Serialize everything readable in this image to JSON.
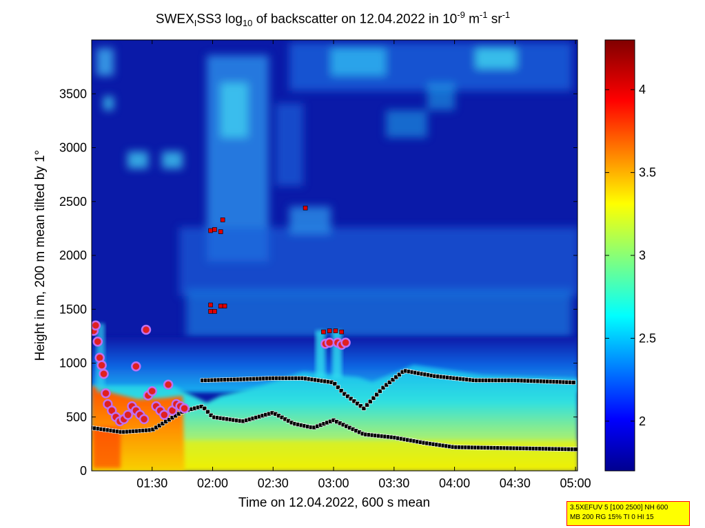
{
  "title": {
    "prefix": "SWEX",
    "sub1": "I",
    "middle": "SS3 log",
    "sub2": "10",
    "rest": " of backscatter on 12.04.2022 in 10",
    "sup1": "-9",
    "unit1": " m",
    "sup2": "-1",
    "unit2": " sr",
    "sup3": "-1"
  },
  "info_box": {
    "line1": "3.5XEFUV 5 [100 2500] NH 600",
    "line2": "MB 200 RG 15% TI 0 HI 15"
  },
  "colors": {
    "low": "#00008f",
    "background_blue": "#0a1aa8",
    "cyan": "#20d8f0",
    "yellow": "#f0f000",
    "orange": "#ff8c00",
    "red": "#c00000",
    "marker_black": "#000000",
    "marker_blob": "#c070f0"
  },
  "chart_data": {
    "type": "heatmap",
    "xlabel": "Time on 12.04.2022, 600 s mean",
    "ylabel": "Height in m, 200 m mean tilted by 1°",
    "x_ticks": [
      "01:30",
      "02:00",
      "02:30",
      "03:00",
      "03:30",
      "04:00",
      "04:30",
      "05:00"
    ],
    "x_range": [
      "01:00",
      "05:01"
    ],
    "y_ticks": [
      0,
      500,
      1000,
      1500,
      2000,
      2500,
      3000,
      3500
    ],
    "ylim": [
      0,
      4000
    ],
    "colorbar": {
      "ticks": [
        2,
        2.5,
        3,
        3.5,
        4
      ],
      "range": [
        1.7,
        4.3
      ]
    },
    "layers": {
      "lower_layer_height_m": [
        {
          "t": "01:00",
          "h": 400
        },
        {
          "t": "01:15",
          "h": 360
        },
        {
          "t": "01:30",
          "h": 380
        },
        {
          "t": "01:45",
          "h": 550
        },
        {
          "t": "01:55",
          "h": 600
        },
        {
          "t": "02:00",
          "h": 500
        },
        {
          "t": "02:15",
          "h": 460
        },
        {
          "t": "02:30",
          "h": 540
        },
        {
          "t": "02:40",
          "h": 440
        },
        {
          "t": "02:50",
          "h": 400
        },
        {
          "t": "03:00",
          "h": 470
        },
        {
          "t": "03:15",
          "h": 340
        },
        {
          "t": "03:30",
          "h": 310
        },
        {
          "t": "03:45",
          "h": 260
        },
        {
          "t": "04:00",
          "h": 220
        },
        {
          "t": "04:30",
          "h": 210
        },
        {
          "t": "05:00",
          "h": 200
        }
      ],
      "upper_layer_height_m": [
        {
          "t": "01:55",
          "h": 840
        },
        {
          "t": "02:15",
          "h": 850
        },
        {
          "t": "02:30",
          "h": 860
        },
        {
          "t": "02:45",
          "h": 860
        },
        {
          "t": "03:00",
          "h": 820
        },
        {
          "t": "03:05",
          "h": 720
        },
        {
          "t": "03:15",
          "h": 580
        },
        {
          "t": "03:25",
          "h": 780
        },
        {
          "t": "03:35",
          "h": 930
        },
        {
          "t": "03:50",
          "h": 880
        },
        {
          "t": "04:10",
          "h": 840
        },
        {
          "t": "04:30",
          "h": 840
        },
        {
          "t": "05:00",
          "h": 820
        }
      ]
    }
  }
}
